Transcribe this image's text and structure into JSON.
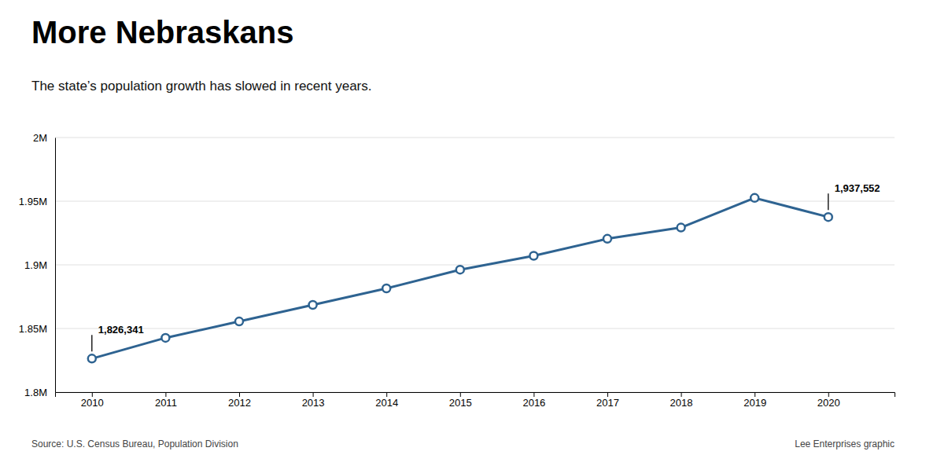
{
  "chart_data": {
    "type": "line",
    "title": "More Nebraskans",
    "subtitle": "The state’s population growth has slowed in recent years.",
    "x": [
      2010,
      2011,
      2012,
      2013,
      2014,
      2015,
      2016,
      2017,
      2018,
      2019,
      2020
    ],
    "values": [
      1826341,
      1842641,
      1855525,
      1868516,
      1881503,
      1896190,
      1907116,
      1920467,
      1929268,
      1952570,
      1937552
    ],
    "color": "#2e6391",
    "marker": "circle",
    "grid": true,
    "xlim": [
      2009.5,
      2020.9
    ],
    "xticks": [
      2010,
      2011,
      2012,
      2013,
      2014,
      2015,
      2016,
      2017,
      2018,
      2019,
      2020
    ],
    "ylim": [
      1800000,
      2000000
    ],
    "yticks": [
      {
        "value": 1800000,
        "label": "1.8M"
      },
      {
        "value": 1850000,
        "label": "1.85M"
      },
      {
        "value": 1900000,
        "label": "1.9M"
      },
      {
        "value": 1950000,
        "label": "1.95M"
      },
      {
        "value": 2000000,
        "label": "2M"
      }
    ],
    "annotations": [
      {
        "text": "1,826,341",
        "x": 2010,
        "y": 1826341
      },
      {
        "text": "1,937,552",
        "x": 2020,
        "y": 1937552
      }
    ],
    "source": "Source: U.S. Census Bureau, Population Division",
    "credit": "Lee Enterprises graphic"
  }
}
